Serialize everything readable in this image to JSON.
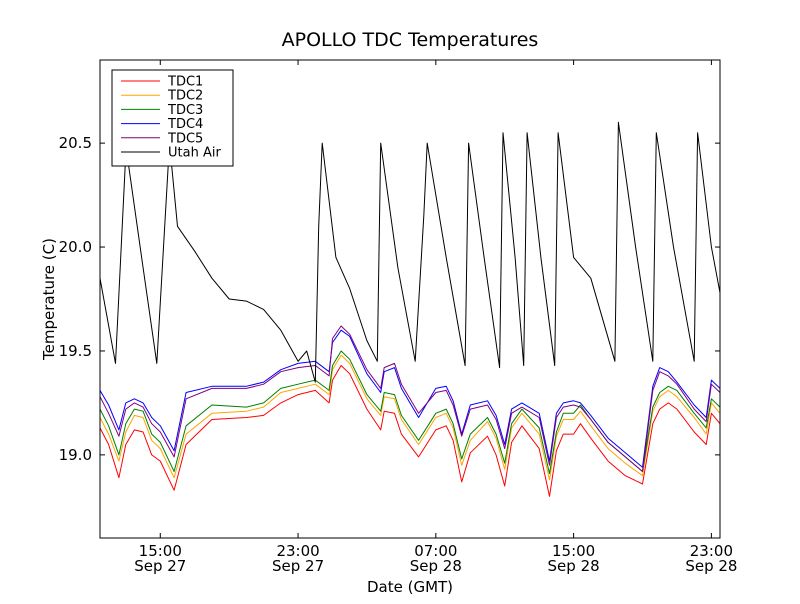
{
  "chart_data": {
    "type": "line",
    "title": "APOLLO TDC Temperatures",
    "xlabel": "Date (GMT)",
    "ylabel": "Temperature (C)",
    "xlim": [
      11.5,
      47.5
    ],
    "ylim": [
      18.6,
      20.9
    ],
    "x_unit": "hours since Sep 27 00:00 GMT",
    "grid": false,
    "legend_position": "top-left",
    "yticks": [
      {
        "value": 19.0,
        "label": "19.0"
      },
      {
        "value": 19.5,
        "label": "19.5"
      },
      {
        "value": 20.0,
        "label": "20.0"
      },
      {
        "value": 20.5,
        "label": "20.5"
      }
    ],
    "xticks": [
      {
        "value": 15,
        "time": "15:00",
        "date": "Sep 27"
      },
      {
        "value": 23,
        "time": "23:00",
        "date": "Sep 27"
      },
      {
        "value": 31,
        "time": "07:00",
        "date": "Sep 28"
      },
      {
        "value": 39,
        "time": "15:00",
        "date": "Sep 28"
      },
      {
        "value": 47,
        "time": "23:00",
        "date": "Sep 28"
      }
    ],
    "series": [
      {
        "name": "TDC1",
        "color": "#ff0000",
        "x": [
          11.5,
          12.0,
          12.6,
          13.0,
          13.5,
          14.0,
          14.5,
          15.0,
          15.8,
          16.5,
          18.0,
          20.0,
          21.0,
          22.0,
          23.0,
          24.0,
          24.8,
          25.0,
          25.5,
          26.0,
          27.0,
          27.8,
          28.0,
          28.6,
          29.0,
          30.0,
          31.0,
          31.6,
          32.0,
          32.5,
          33.0,
          34.0,
          34.5,
          35.0,
          35.4,
          36.0,
          37.0,
          37.6,
          38.0,
          38.4,
          39.0,
          39.4,
          40.0,
          41.0,
          42.0,
          43.0,
          43.6,
          44.0,
          44.5,
          45.0,
          46.0,
          46.7,
          47.0,
          47.5
        ],
        "y": [
          19.13,
          19.05,
          18.89,
          19.05,
          19.12,
          19.11,
          19.0,
          18.97,
          18.83,
          19.05,
          19.17,
          19.18,
          19.19,
          19.25,
          19.29,
          19.31,
          19.25,
          19.36,
          19.43,
          19.39,
          19.22,
          19.12,
          19.21,
          19.2,
          19.1,
          18.99,
          19.12,
          19.14,
          19.07,
          18.87,
          19.01,
          19.09,
          19.0,
          18.85,
          19.06,
          19.14,
          19.03,
          18.8,
          19.02,
          19.1,
          19.1,
          19.15,
          19.08,
          18.97,
          18.9,
          18.86,
          19.15,
          19.22,
          19.25,
          19.22,
          19.11,
          19.05,
          19.2,
          19.15
        ]
      },
      {
        "name": "TDC2",
        "color": "#ffa500",
        "x": [
          11.5,
          12.0,
          12.6,
          13.0,
          13.5,
          14.0,
          14.5,
          15.0,
          15.8,
          16.5,
          18.0,
          20.0,
          21.0,
          22.0,
          23.0,
          24.0,
          24.8,
          25.0,
          25.5,
          26.0,
          27.0,
          27.8,
          28.0,
          28.6,
          29.0,
          30.0,
          31.0,
          31.6,
          32.0,
          32.5,
          33.0,
          34.0,
          34.5,
          35.0,
          35.4,
          36.0,
          37.0,
          37.6,
          38.0,
          38.4,
          39.0,
          39.4,
          40.0,
          41.0,
          42.0,
          43.0,
          43.6,
          44.0,
          44.5,
          45.0,
          46.0,
          46.7,
          47.0,
          47.5
        ],
        "y": [
          19.18,
          19.1,
          18.97,
          19.11,
          19.19,
          19.18,
          19.07,
          19.03,
          18.89,
          19.1,
          19.2,
          19.21,
          19.23,
          19.3,
          19.32,
          19.34,
          19.29,
          19.41,
          19.48,
          19.44,
          19.27,
          19.19,
          19.28,
          19.27,
          19.17,
          19.05,
          19.18,
          19.2,
          19.13,
          18.95,
          19.07,
          19.16,
          19.08,
          18.93,
          19.13,
          19.2,
          19.1,
          18.88,
          19.09,
          19.17,
          19.17,
          19.21,
          19.14,
          19.03,
          18.96,
          18.9,
          19.21,
          19.28,
          19.31,
          19.28,
          19.18,
          19.1,
          19.25,
          19.2
        ]
      },
      {
        "name": "TDC3",
        "color": "#008000",
        "x": [
          11.5,
          12.0,
          12.6,
          13.0,
          13.5,
          14.0,
          14.5,
          15.0,
          15.8,
          16.5,
          18.0,
          20.0,
          21.0,
          22.0,
          23.0,
          24.0,
          24.8,
          25.0,
          25.5,
          26.0,
          27.0,
          27.8,
          28.0,
          28.6,
          29.0,
          30.0,
          31.0,
          31.6,
          32.0,
          32.5,
          33.0,
          34.0,
          34.5,
          35.0,
          35.4,
          36.0,
          37.0,
          37.6,
          38.0,
          38.4,
          39.0,
          39.4,
          40.0,
          41.0,
          42.0,
          43.0,
          43.6,
          44.0,
          44.5,
          45.0,
          46.0,
          46.7,
          47.0,
          47.5
        ],
        "y": [
          19.22,
          19.14,
          19.0,
          19.15,
          19.22,
          19.21,
          19.1,
          19.06,
          18.92,
          19.14,
          19.24,
          19.23,
          19.25,
          19.32,
          19.34,
          19.36,
          19.31,
          19.43,
          19.5,
          19.46,
          19.29,
          19.21,
          19.3,
          19.29,
          19.19,
          19.07,
          19.2,
          19.22,
          19.15,
          18.98,
          19.1,
          19.18,
          19.1,
          18.96,
          19.15,
          19.22,
          19.13,
          18.91,
          19.11,
          19.2,
          19.2,
          19.24,
          19.17,
          19.06,
          18.99,
          18.92,
          19.23,
          19.3,
          19.33,
          19.31,
          19.2,
          19.13,
          19.27,
          19.23
        ]
      },
      {
        "name": "TDC4",
        "color": "#0000ff",
        "x": [
          11.5,
          12.0,
          12.6,
          13.0,
          13.5,
          14.0,
          14.5,
          15.0,
          15.8,
          16.5,
          18.0,
          20.0,
          21.0,
          22.0,
          23.0,
          24.0,
          24.8,
          25.0,
          25.5,
          26.0,
          27.0,
          27.8,
          28.0,
          28.6,
          29.0,
          30.0,
          31.0,
          31.6,
          32.0,
          32.5,
          33.0,
          34.0,
          34.5,
          35.0,
          35.4,
          36.0,
          37.0,
          37.6,
          38.0,
          38.4,
          39.0,
          39.4,
          40.0,
          41.0,
          42.0,
          43.0,
          43.6,
          44.0,
          44.5,
          45.0,
          46.0,
          46.7,
          47.0,
          47.5
        ],
        "y": [
          19.31,
          19.24,
          19.12,
          19.25,
          19.27,
          19.25,
          19.18,
          19.14,
          19.02,
          19.3,
          19.33,
          19.33,
          19.35,
          19.41,
          19.44,
          19.45,
          19.4,
          19.54,
          19.6,
          19.57,
          19.39,
          19.3,
          19.4,
          19.42,
          19.32,
          19.18,
          19.32,
          19.33,
          19.26,
          19.1,
          19.24,
          19.26,
          19.19,
          19.05,
          19.22,
          19.25,
          19.2,
          18.97,
          19.2,
          19.25,
          19.26,
          19.25,
          19.19,
          19.08,
          19.01,
          18.94,
          19.33,
          19.42,
          19.4,
          19.35,
          19.24,
          19.18,
          19.36,
          19.32
        ]
      },
      {
        "name": "TDC5",
        "color": "#800080",
        "x": [
          11.5,
          12.0,
          12.6,
          13.0,
          13.5,
          14.0,
          14.5,
          15.0,
          15.8,
          16.5,
          18.0,
          20.0,
          21.0,
          22.0,
          23.0,
          24.0,
          24.8,
          25.0,
          25.5,
          26.0,
          27.0,
          27.8,
          28.0,
          28.6,
          29.0,
          30.0,
          31.0,
          31.6,
          32.0,
          32.5,
          33.0,
          34.0,
          34.5,
          35.0,
          35.4,
          36.0,
          37.0,
          37.6,
          38.0,
          38.4,
          39.0,
          39.4,
          40.0,
          41.0,
          42.0,
          43.0,
          43.6,
          44.0,
          44.5,
          45.0,
          46.0,
          46.7,
          47.0,
          47.5
        ],
        "y": [
          19.28,
          19.2,
          19.09,
          19.22,
          19.25,
          19.23,
          19.15,
          19.11,
          18.99,
          19.27,
          19.32,
          19.32,
          19.34,
          19.4,
          19.42,
          19.43,
          19.38,
          19.56,
          19.62,
          19.58,
          19.41,
          19.32,
          19.42,
          19.44,
          19.34,
          19.2,
          19.3,
          19.31,
          19.24,
          19.09,
          19.22,
          19.24,
          19.17,
          19.03,
          19.2,
          19.23,
          19.18,
          18.95,
          19.18,
          19.23,
          19.24,
          19.23,
          19.17,
          19.06,
          18.99,
          18.92,
          19.31,
          19.4,
          19.38,
          19.34,
          19.22,
          19.16,
          19.34,
          19.3
        ]
      },
      {
        "name": "Utah Air",
        "color": "#000000",
        "x": [
          11.5,
          12.4,
          13.0,
          13.15,
          14.0,
          14.8,
          15.5,
          15.65,
          16.0,
          17.0,
          18.0,
          19.0,
          20.0,
          21.0,
          22.0,
          23.0,
          23.5,
          24.0,
          24.2,
          24.4,
          25.2,
          26.0,
          27.0,
          27.6,
          27.8,
          28.8,
          29.8,
          30.3,
          30.5,
          31.6,
          32.7,
          32.9,
          33.8,
          34.7,
          34.9,
          35.6,
          36.1,
          36.3,
          37.1,
          37.9,
          38.1,
          39.0,
          40.0,
          41.4,
          41.6,
          42.6,
          43.6,
          43.8,
          44.8,
          46.0,
          46.2,
          47.0,
          47.5
        ],
        "y": [
          19.85,
          19.44,
          20.45,
          20.4,
          19.9,
          19.44,
          20.45,
          20.4,
          20.1,
          19.98,
          19.85,
          19.75,
          19.74,
          19.7,
          19.6,
          19.45,
          19.5,
          19.35,
          20.1,
          20.5,
          19.95,
          19.8,
          19.55,
          19.45,
          20.5,
          19.9,
          19.45,
          20.15,
          20.5,
          19.95,
          19.43,
          20.5,
          19.95,
          19.42,
          20.55,
          19.95,
          19.43,
          20.55,
          19.95,
          19.43,
          20.55,
          19.95,
          19.85,
          19.45,
          20.6,
          20.0,
          19.45,
          20.55,
          20.0,
          19.45,
          20.55,
          20.0,
          19.78
        ]
      }
    ]
  }
}
